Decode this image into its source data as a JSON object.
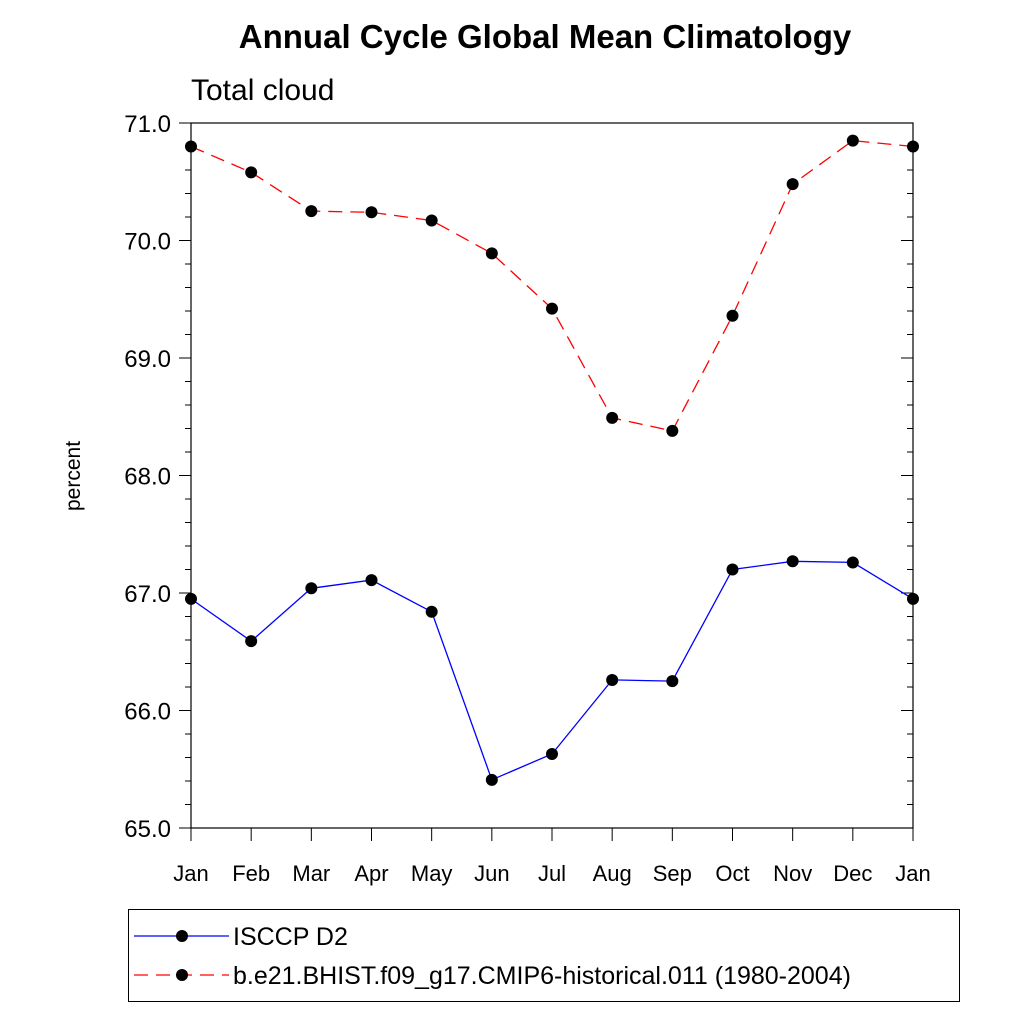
{
  "chart_data": {
    "type": "line",
    "title": "Annual Cycle Global Mean Climatology",
    "subtitle": "Total cloud",
    "ylabel": "percent",
    "ylim": [
      65.0,
      71.0
    ],
    "y_ticks": [
      "65.0",
      "66.0",
      "67.0",
      "68.0",
      "69.0",
      "70.0",
      "71.0"
    ],
    "categories": [
      "Jan",
      "Feb",
      "Mar",
      "Apr",
      "May",
      "Jun",
      "Jul",
      "Aug",
      "Sep",
      "Oct",
      "Nov",
      "Dec",
      "Jan"
    ],
    "series": [
      {
        "name": "ISCCP D2",
        "color": "#0000ff",
        "line_style": "solid",
        "marker": "filled-circle",
        "values": [
          66.95,
          66.59,
          67.04,
          67.11,
          66.84,
          65.41,
          65.63,
          66.26,
          66.25,
          67.2,
          67.27,
          67.26,
          66.95
        ]
      },
      {
        "name": "b.e21.BHIST.f09_g17.CMIP6-historical.011 (1980-2004)",
        "color": "#ff0000",
        "line_style": "dashed",
        "marker": "filled-circle",
        "values": [
          70.8,
          70.58,
          70.25,
          70.24,
          70.17,
          69.89,
          69.42,
          68.49,
          68.38,
          69.36,
          70.48,
          70.85,
          70.8
        ]
      }
    ],
    "grid": false,
    "legend_position": "bottom"
  }
}
